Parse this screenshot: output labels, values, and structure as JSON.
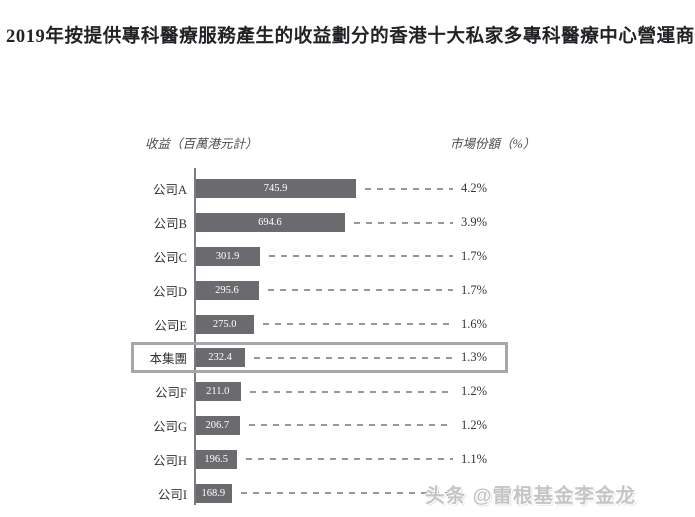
{
  "title": "2019年按提供專科醫療服務產生的收益劃分的香港十大私家多專科醫療中心營運商",
  "watermark": "头条 @雷根基金李金龙",
  "chart_data": {
    "type": "bar",
    "orientation": "horizontal",
    "revenue_axis_label": "收益（百萬港元計）",
    "share_axis_label": "市場份額（%）",
    "value_unit": "百萬港元",
    "xlim": [
      0,
      780
    ],
    "grid": false,
    "bar_color": "#6b6b6f",
    "highlight_row_index": 5,
    "rows": [
      {
        "label": "公司A",
        "revenue": 745.9,
        "revenue_label": "745.9",
        "share": "4.2%"
      },
      {
        "label": "公司B",
        "revenue": 694.6,
        "revenue_label": "694.6",
        "share": "3.9%"
      },
      {
        "label": "公司C",
        "revenue": 301.9,
        "revenue_label": "301.9",
        "share": "1.7%"
      },
      {
        "label": "公司D",
        "revenue": 295.6,
        "revenue_label": "295.6",
        "share": "1.7%"
      },
      {
        "label": "公司E",
        "revenue": 275.0,
        "revenue_label": "275.0",
        "share": "1.6%"
      },
      {
        "label": "本集團",
        "revenue": 232.4,
        "revenue_label": "232.4",
        "share": "1.3%"
      },
      {
        "label": "公司F",
        "revenue": 211.0,
        "revenue_label": "211.0",
        "share": "1.2%"
      },
      {
        "label": "公司G",
        "revenue": 206.7,
        "revenue_label": "206.7",
        "share": "1.2%"
      },
      {
        "label": "公司H",
        "revenue": 196.5,
        "revenue_label": "196.5",
        "share": "1.1%"
      },
      {
        "label": "公司I",
        "revenue": 168.9,
        "revenue_label": "168.9",
        "share": ""
      }
    ]
  }
}
